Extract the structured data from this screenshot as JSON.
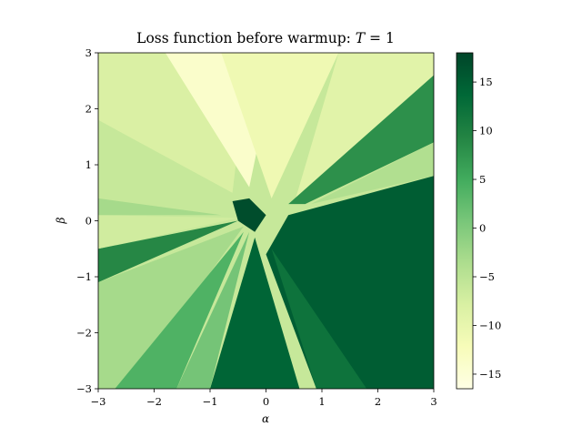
{
  "chart_data": {
    "type": "heatmap",
    "title": "Loss function before warmup: T = 1",
    "title_parts": {
      "text": "Loss function before warmup: ",
      "var": "T",
      "rest": " = 1"
    },
    "xlabel": "α",
    "ylabel": "β",
    "xlim": [
      -3,
      3
    ],
    "ylim": [
      -3,
      3
    ],
    "xticks": [
      -3,
      -2,
      -1,
      0,
      1,
      2,
      3
    ],
    "yticks": [
      -3,
      -2,
      -1,
      0,
      1,
      2,
      3
    ],
    "xtick_labels": [
      "−3",
      "−2",
      "−1",
      "0",
      "1",
      "2",
      "3"
    ],
    "ytick_labels": [
      "−3",
      "−2",
      "−1",
      "0",
      "1",
      "2",
      "3"
    ],
    "colormap": "YlGn",
    "colorbar": {
      "range": [
        -16.5,
        18
      ],
      "ticks": [
        -15,
        -10,
        -5,
        0,
        5,
        10,
        15
      ],
      "tick_labels": [
        "−15",
        "−10",
        "−5",
        "0",
        "5",
        "10",
        "15"
      ]
    },
    "regions": [
      {
        "name": "upper-left-sector",
        "value": -8,
        "polygon": [
          [
            -3,
            3
          ],
          [
            -0.3,
            3
          ],
          [
            -0.6,
            0.5
          ],
          [
            -3,
            1.8
          ]
        ]
      },
      {
        "name": "top-pale-wedge",
        "value": -14,
        "polygon": [
          [
            -1.8,
            3
          ],
          [
            0.2,
            3
          ],
          [
            -0.3,
            0.6
          ]
        ]
      },
      {
        "name": "top-mid-wedge",
        "value": -11,
        "polygon": [
          [
            -0.8,
            3
          ],
          [
            1.3,
            3
          ],
          [
            0.1,
            0.4
          ]
        ]
      },
      {
        "name": "upper-right-wedge",
        "value": -9,
        "polygon": [
          [
            1.3,
            3
          ],
          [
            3,
            3
          ],
          [
            3,
            2.4
          ],
          [
            0.5,
            0.3
          ]
        ]
      },
      {
        "name": "right-green-band",
        "value": 8,
        "polygon": [
          [
            3,
            2.6
          ],
          [
            3,
            1.4
          ],
          [
            0.7,
            0.3
          ],
          [
            0.4,
            0.3
          ]
        ]
      },
      {
        "name": "right-pale-strip",
        "value": -4,
        "polygon": [
          [
            3,
            1.4
          ],
          [
            3,
            0.8
          ],
          [
            0.8,
            0.3
          ]
        ]
      },
      {
        "name": "right-dark-block",
        "value": 15,
        "polygon": [
          [
            0.4,
            0.1
          ],
          [
            3,
            0.8
          ],
          [
            3,
            -3
          ],
          [
            0.9,
            -3
          ],
          [
            0.0,
            -0.6
          ]
        ]
      },
      {
        "name": "lower-mid-dark",
        "value": 14,
        "polygon": [
          [
            -0.2,
            -0.3
          ],
          [
            0.6,
            -3
          ],
          [
            -1.0,
            -3
          ]
        ]
      },
      {
        "name": "lower-right-med",
        "value": 12,
        "polygon": [
          [
            0.1,
            -0.5
          ],
          [
            1.8,
            -3
          ],
          [
            0.9,
            -3
          ]
        ]
      },
      {
        "name": "left-dark-band",
        "value": 9,
        "polygon": [
          [
            -3,
            -0.5
          ],
          [
            -0.5,
            0.0
          ],
          [
            -3,
            -1.1
          ]
        ]
      },
      {
        "name": "left-pale-band",
        "value": -7,
        "polygon": [
          [
            -3,
            0.1
          ],
          [
            -0.5,
            0.05
          ],
          [
            -3,
            -0.5
          ]
        ]
      },
      {
        "name": "left-upper-med-band",
        "value": -3,
        "polygon": [
          [
            -3,
            0.1
          ],
          [
            -0.8,
            0.1
          ],
          [
            -3,
            0.4
          ]
        ]
      },
      {
        "name": "lower-left-light",
        "value": -3,
        "polygon": [
          [
            -3,
            -1.1
          ],
          [
            -0.4,
            -0.1
          ],
          [
            -2.5,
            -3
          ],
          [
            -3,
            -3
          ]
        ]
      },
      {
        "name": "lower-left-green",
        "value": 4,
        "polygon": [
          [
            -2.7,
            -3
          ],
          [
            -0.4,
            -0.2
          ],
          [
            -1.6,
            -3
          ]
        ]
      },
      {
        "name": "lower-mid-light",
        "value": 1,
        "polygon": [
          [
            -1.6,
            -3
          ],
          [
            -0.3,
            -0.2
          ],
          [
            -1.0,
            -3
          ]
        ]
      },
      {
        "name": "center-blob",
        "value": 17,
        "polygon": [
          [
            -0.6,
            0.35
          ],
          [
            -0.3,
            0.4
          ],
          [
            0.0,
            0.1
          ],
          [
            -0.2,
            -0.2
          ],
          [
            -0.5,
            0.0
          ]
        ]
      }
    ]
  }
}
